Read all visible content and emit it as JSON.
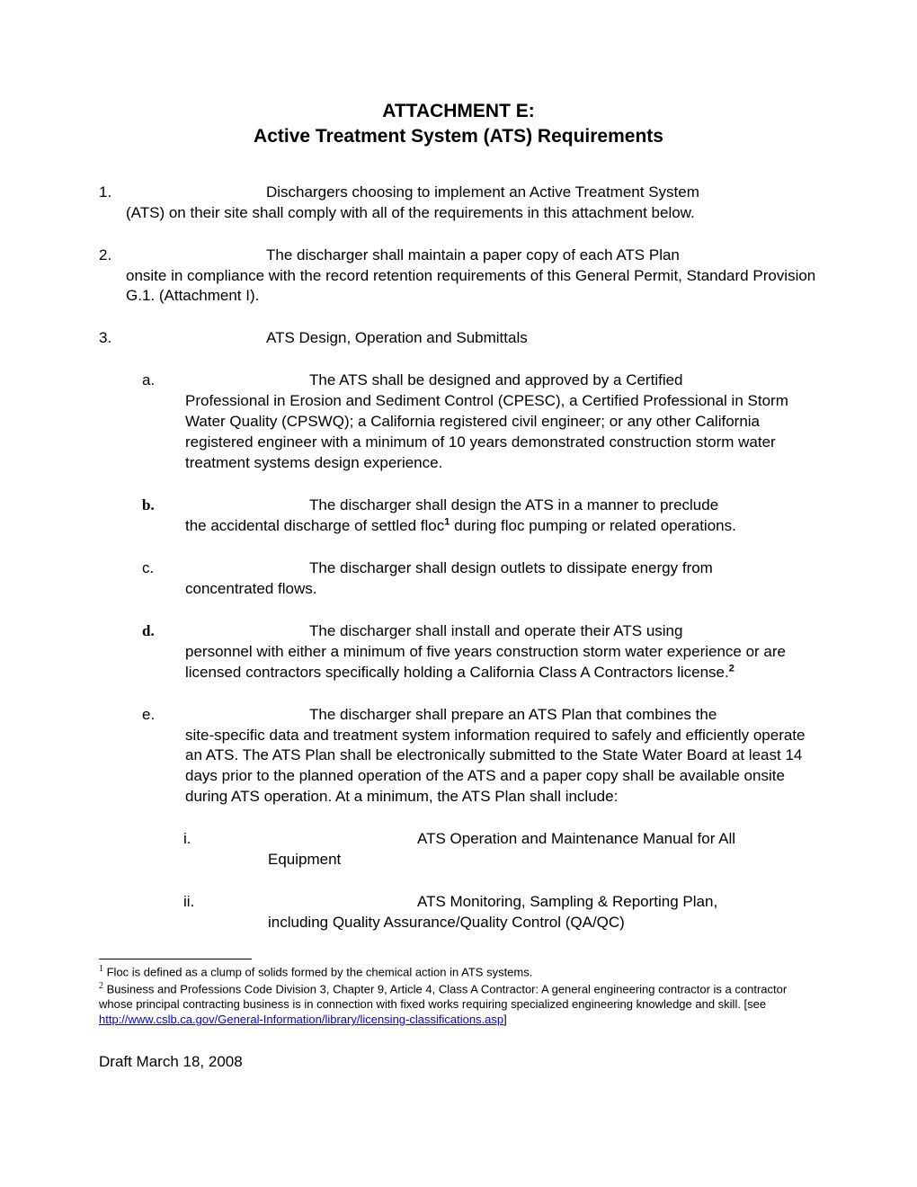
{
  "title": {
    "line1": "ATTACHMENT E:",
    "line2": "Active Treatment System (ATS) Requirements"
  },
  "items": [
    {
      "marker": "1.",
      "first": "Dischargers choosing to implement an Active Treatment System",
      "rest": "(ATS) on their site shall comply with all of the requirements in this attachment below."
    },
    {
      "marker": "2.",
      "first": "The discharger shall maintain a paper copy of each ATS Plan",
      "rest": "onsite in compliance with the record retention requirements of this General Permit, Standard Provision G.1. (Attachment I)."
    },
    {
      "marker": "3.",
      "first": "ATS Design, Operation and Submittals",
      "rest": ""
    }
  ],
  "sub": [
    {
      "marker": "a.",
      "serif": false,
      "first": "The ATS shall be designed and approved by a Certified",
      "rest": "Professional in Erosion and Sediment Control (CPESC), a Certified Professional in Storm Water Quality (CPSWQ); a California registered civil engineer; or any other California registered engineer with a minimum of 10 years demonstrated construction storm water treatment systems design experience."
    },
    {
      "marker": "b.",
      "serif": true,
      "first": "The discharger shall design the ATS in a manner to preclude",
      "rest_pre": "the accidental discharge of settled floc",
      "sup": "1",
      "rest_post": " during floc pumping or related operations."
    },
    {
      "marker": "c.",
      "serif": false,
      "first": "The discharger shall design outlets to dissipate energy from",
      "rest": "concentrated flows."
    },
    {
      "marker": "d.",
      "serif": true,
      "first": "The discharger shall install and operate their ATS using",
      "rest_pre": "personnel with either a minimum of five years construction storm water experience or are licensed contractors specifically holding a California Class A Contractors license.",
      "sup": "2",
      "rest_post": ""
    },
    {
      "marker": "e.",
      "serif": false,
      "first": "The discharger shall prepare an ATS Plan that combines the",
      "rest": "site-specific data and treatment system information required to safely and efficiently operate an ATS.  The ATS Plan shall be electronically submitted to the State Water Board at least 14 days prior to the planned operation of the ATS and a paper copy shall be available onsite during ATS operation.  At a minimum, the ATS Plan shall include:"
    }
  ],
  "subsub": [
    {
      "marker": "i.",
      "first": "ATS Operation and Maintenance Manual for All",
      "rest": "Equipment"
    },
    {
      "marker": "ii.",
      "first": "ATS Monitoring, Sampling & Reporting Plan,",
      "rest": "including Quality Assurance/Quality Control (QA/QC)"
    }
  ],
  "footnotes": {
    "f1_marker": "1",
    "f1_text": " Floc is defined as a clump of solids formed by the chemical action in ATS systems.",
    "f2_marker": "2",
    "f2_pre": " Business and Professions Code Division 3, Chapter 9, Article 4, Class A Contractor:  A general engineering contractor is a contractor whose principal contracting business is in connection with fixed works requiring specialized engineering knowledge and skill. [see ",
    "f2_link": "http://www.cslb.ca.gov/General-Information/library/licensing-classifications.asp",
    "f2_post": "]"
  },
  "draft": "Draft March 18, 2008"
}
